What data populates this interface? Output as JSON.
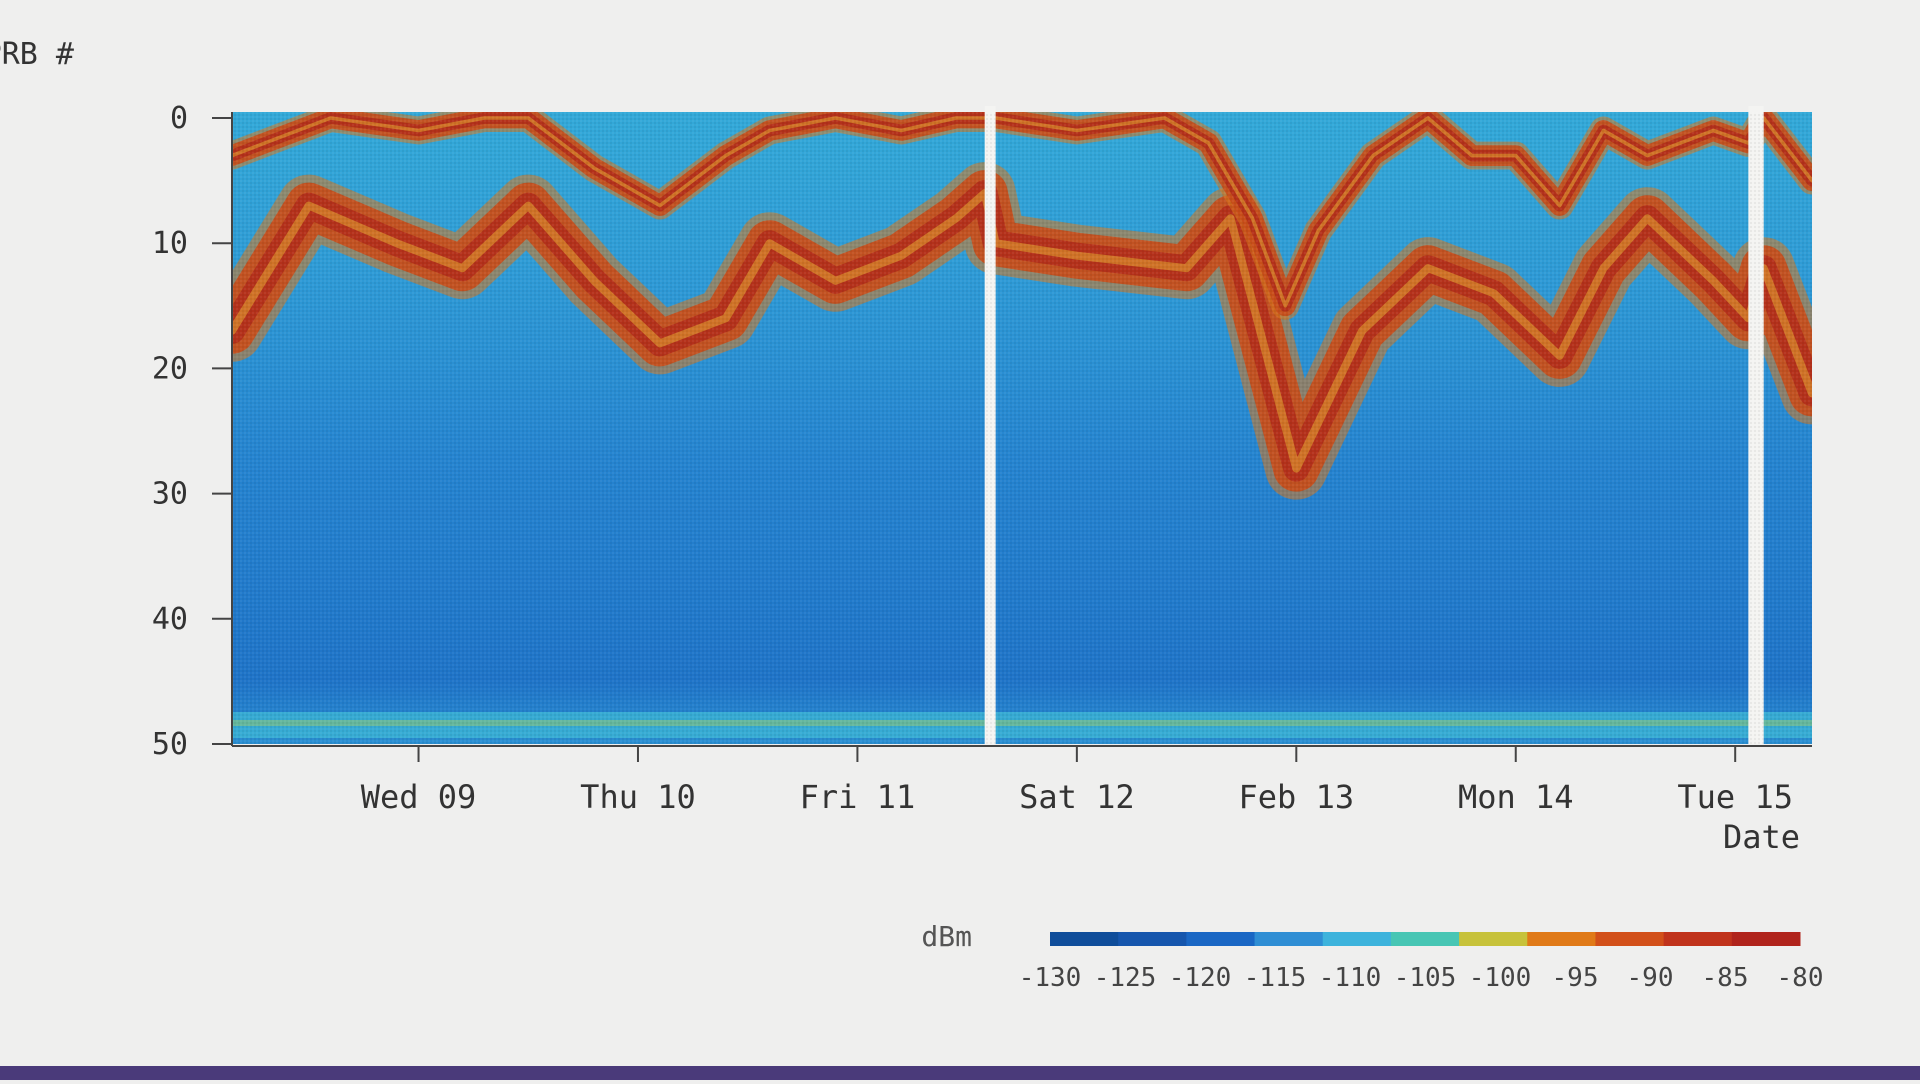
{
  "chart_data": {
    "type": "heatmap",
    "ylabel": "PRB #",
    "xlabel": "Date",
    "yticks": [
      0,
      10,
      20,
      30,
      40,
      50
    ],
    "ylim": [
      0,
      50
    ],
    "y_direction": "down",
    "xticks": [
      "Wed 09",
      "Thu 10",
      "Fri 11",
      "Sat 12",
      "Feb 13",
      "Mon 14",
      "Tue 15"
    ],
    "x_range_days": [
      8.15,
      15.35
    ],
    "x_tick_days": [
      9,
      10,
      11,
      12,
      13,
      14,
      15
    ],
    "data_gaps_days": [
      [
        11.58,
        11.63
      ],
      [
        15.06,
        15.13
      ]
    ],
    "colorbar": {
      "label": "dBm",
      "ticks": [
        -130,
        -125,
        -120,
        -115,
        -110,
        -105,
        -100,
        -95,
        -90,
        -85,
        -80
      ],
      "colors": [
        "#0f4d9a",
        "#1656ad",
        "#1a67c4",
        "#2f8ed4",
        "#3db3dc",
        "#47c6b4",
        "#c7c23a",
        "#e07a18",
        "#d2501a",
        "#c0331c",
        "#b0241c"
      ],
      "placement": "bottom-right"
    },
    "interference_bands": [
      {
        "name": "primary",
        "points": [
          [
            8.15,
            17
          ],
          [
            8.5,
            7
          ],
          [
            8.9,
            10
          ],
          [
            9.2,
            12
          ],
          [
            9.5,
            7
          ],
          [
            9.8,
            13
          ],
          [
            10.1,
            18
          ],
          [
            10.4,
            16
          ],
          [
            10.6,
            10
          ],
          [
            10.9,
            13
          ],
          [
            11.2,
            11
          ],
          [
            11.45,
            8
          ],
          [
            11.58,
            6
          ],
          [
            11.63,
            10
          ],
          [
            12.0,
            11
          ],
          [
            12.5,
            12
          ],
          [
            12.7,
            8
          ],
          [
            13.0,
            28
          ],
          [
            13.3,
            17
          ],
          [
            13.6,
            12
          ],
          [
            13.9,
            14
          ],
          [
            14.2,
            19
          ],
          [
            14.4,
            12
          ],
          [
            14.6,
            8
          ],
          [
            14.9,
            13
          ],
          [
            15.06,
            16
          ],
          [
            15.13,
            12
          ],
          [
            15.35,
            22
          ]
        ]
      },
      {
        "name": "upper",
        "points": [
          [
            8.15,
            3
          ],
          [
            8.3,
            2
          ],
          [
            8.6,
            0
          ],
          [
            9.0,
            1
          ],
          [
            9.3,
            0
          ],
          [
            9.5,
            0
          ],
          [
            9.8,
            4
          ],
          [
            10.1,
            7
          ],
          [
            10.4,
            3
          ],
          [
            10.6,
            1
          ],
          [
            10.9,
            0
          ],
          [
            11.2,
            1
          ],
          [
            11.45,
            0
          ],
          [
            11.58,
            0
          ],
          [
            11.63,
            0
          ],
          [
            12.0,
            1
          ],
          [
            12.4,
            0
          ],
          [
            12.6,
            2
          ],
          [
            12.8,
            8
          ],
          [
            12.95,
            15
          ],
          [
            13.1,
            9
          ],
          [
            13.35,
            3
          ],
          [
            13.6,
            0
          ],
          [
            13.8,
            3
          ],
          [
            14.0,
            3
          ],
          [
            14.2,
            7
          ],
          [
            14.4,
            1
          ],
          [
            14.6,
            3
          ],
          [
            14.9,
            1
          ],
          [
            15.06,
            2
          ],
          [
            15.13,
            0
          ],
          [
            15.35,
            5
          ]
        ]
      }
    ]
  }
}
